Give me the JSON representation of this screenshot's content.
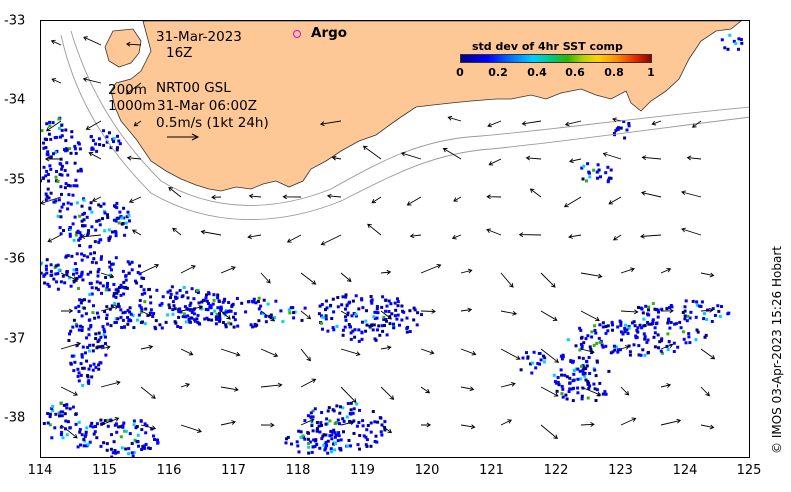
{
  "map": {
    "annotations": {
      "date": "31-Mar-2023",
      "hour": "16Z",
      "contour_depths": [
        "200m",
        "1000m"
      ],
      "product": "NRT00 GSL",
      "product_time": "31-Mar 06:00Z",
      "velocity_scale": "0.5m/s (1kt 24h)"
    },
    "legend": {
      "argo_label": "Argo",
      "argo_marker_color": "#e000e0"
    },
    "colorbar": {
      "title": "std dev of 4hr SST comp",
      "ticks": [
        "0",
        "0.2",
        "0.4",
        "0.6",
        "0.8",
        "1"
      ],
      "colors": [
        "#00008b",
        "#0000ff",
        "#00d0ff",
        "#32b400",
        "#ffd200",
        "#8b0000"
      ]
    },
    "x_axis": {
      "ticks": [
        "114",
        "115",
        "116",
        "117",
        "118",
        "119",
        "120",
        "121",
        "122",
        "123",
        "124",
        "125"
      ]
    },
    "y_axis": {
      "ticks": [
        "-33",
        "-34",
        "-35",
        "-36",
        "-37",
        "-38"
      ]
    },
    "land_color": "#fdc896",
    "credit": "© IMOS 03-Apr-2023 15:26 Hobart"
  }
}
